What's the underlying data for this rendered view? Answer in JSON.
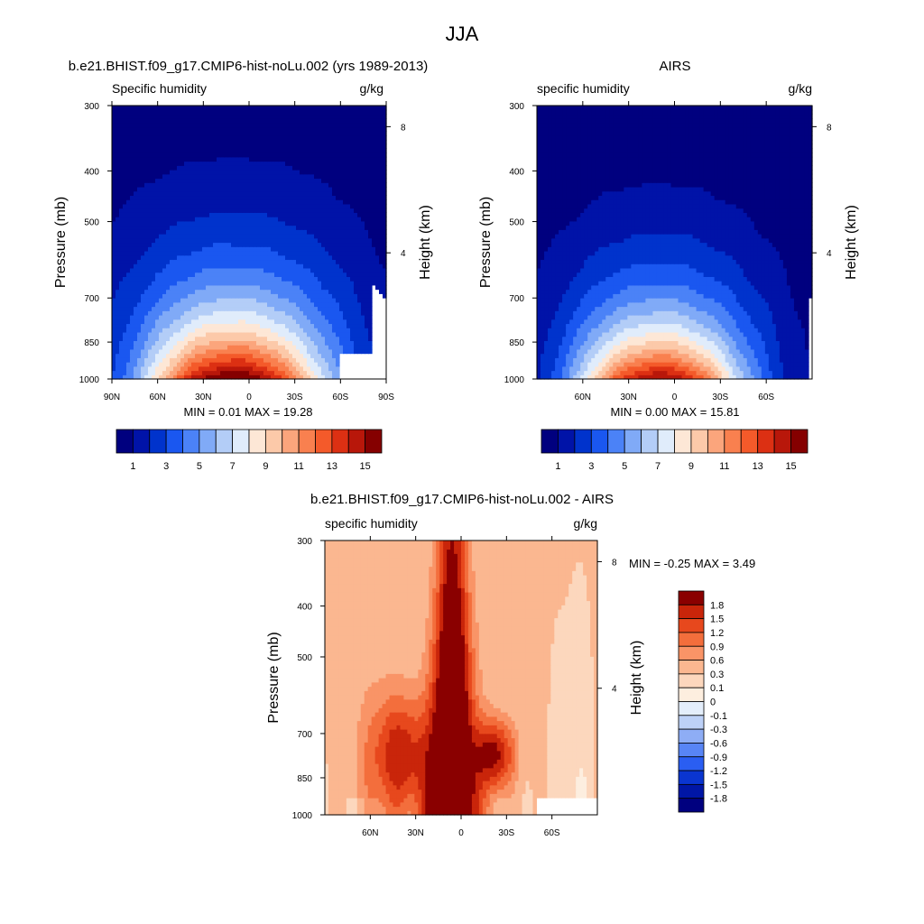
{
  "page": {
    "title": "JJA"
  },
  "chart_data": [
    {
      "type": "heatmap",
      "id": "model",
      "title": "b.e21.BHIST.f09_g17.CMIP6-hist-noLu.002 (yrs 1989-2013)",
      "left_label": "Specific humidity",
      "right_label": "g/kg",
      "ylabel": "Pressure (mb)",
      "y2label": "Height (km)",
      "x_ticks": [
        "90N",
        "60N",
        "30N",
        "0",
        "30S",
        "60S",
        "90S"
      ],
      "x_tick_values": [
        90,
        60,
        30,
        0,
        -30,
        -60,
        -90
      ],
      "y_ticks": [
        300,
        400,
        500,
        700,
        850,
        1000
      ],
      "y2_ticks": [
        "8",
        "4"
      ],
      "y2_tick_values": [
        8,
        4
      ],
      "xlim": [
        90,
        -90
      ],
      "ylim": [
        1000,
        300
      ],
      "y_scale": "log",
      "stats": "MIN =   0.01  MAX =  19.28",
      "field": {
        "peak_value": 16.5,
        "peak_lat": 8,
        "surface_width_deg": 44,
        "decay_height": 0.55,
        "lean": 0.25,
        "mask_lat": -60,
        "mask_pressure": 900
      }
    },
    {
      "type": "heatmap",
      "id": "obs",
      "title": "AIRS",
      "left_label": "specific humidity",
      "right_label": "g/kg",
      "ylabel": "Pressure (mb)",
      "y2label": "Height (km)",
      "x_ticks": [
        "60N",
        "30N",
        "0",
        "30S",
        "60S"
      ],
      "x_tick_values": [
        60,
        30,
        0,
        -30,
        -60
      ],
      "y_ticks": [
        300,
        400,
        500,
        700,
        850,
        1000
      ],
      "y2_ticks": [
        "8",
        "4"
      ],
      "y2_tick_values": [
        8,
        4
      ],
      "xlim": [
        90,
        -90
      ],
      "ylim": [
        1000,
        300
      ],
      "y_scale": "log",
      "stats": "MIN =   0.00  MAX =  15.81",
      "field": {
        "peak_value": 15.2,
        "peak_lat": 8,
        "surface_width_deg": 40,
        "decay_height": 0.5,
        "lean": 0.2
      }
    },
    {
      "type": "heatmap",
      "id": "diff",
      "title": "b.e21.BHIST.f09_g17.CMIP6-hist-noLu.002 - AIRS",
      "left_label": "specific humidity",
      "right_label": "g/kg",
      "ylabel": "Pressure (mb)",
      "y2label": "Height (km)",
      "x_ticks": [
        "60N",
        "30N",
        "0",
        "30S",
        "60S"
      ],
      "x_tick_values": [
        60,
        30,
        0,
        -30,
        -60
      ],
      "y_ticks": [
        300,
        400,
        500,
        700,
        850,
        1000
      ],
      "y2_ticks": [
        "8",
        "4"
      ],
      "y2_tick_values": [
        8,
        4
      ],
      "xlim": [
        90,
        -90
      ],
      "ylim": [
        1000,
        300
      ],
      "y_scale": "log",
      "stats": "MIN =  -0.25  MAX =   3.49",
      "field": {
        "mask_lat": -50,
        "mask_pressure": 930
      }
    }
  ],
  "colorbar_abs": {
    "colors": [
      "#00007f",
      "#0013a8",
      "#0033cc",
      "#1a57f0",
      "#4b82f7",
      "#80aaf7",
      "#b3cdf7",
      "#e0ecfb",
      "#fde7d6",
      "#fcc9a9",
      "#fba57c",
      "#f9804f",
      "#f45a2a",
      "#dc3013",
      "#b8170a",
      "#850000"
    ],
    "labels": [
      "1",
      "3",
      "5",
      "7",
      "9",
      "11",
      "13",
      "15"
    ],
    "levels": [
      0,
      1,
      2,
      3,
      4,
      5,
      6,
      7,
      8,
      9,
      10,
      11,
      12,
      13,
      14,
      15
    ]
  },
  "colorbar_diff": {
    "colors": [
      "#00007f",
      "#0016a6",
      "#0a35d0",
      "#2a5ef2",
      "#5885f5",
      "#8eadf5",
      "#bdd1f7",
      "#e4eefb",
      "#fdeedf",
      "#fcd7bd",
      "#fbb790",
      "#f99467",
      "#f36e3c",
      "#e7481d",
      "#c9250a",
      "#8a0000"
    ],
    "labels": [
      "1.8",
      "1.5",
      "1.2",
      "0.9",
      "0.6",
      "0.3",
      "0.1",
      "0",
      "-0.1",
      "-0.3",
      "-0.6",
      "-0.9",
      "-1.2",
      "-1.5",
      "-1.8"
    ],
    "levels": [
      -1.8,
      -1.5,
      -1.2,
      -0.9,
      -0.6,
      -0.3,
      -0.1,
      0,
      0.1,
      0.3,
      0.6,
      0.9,
      1.2,
      1.5,
      1.8
    ]
  }
}
